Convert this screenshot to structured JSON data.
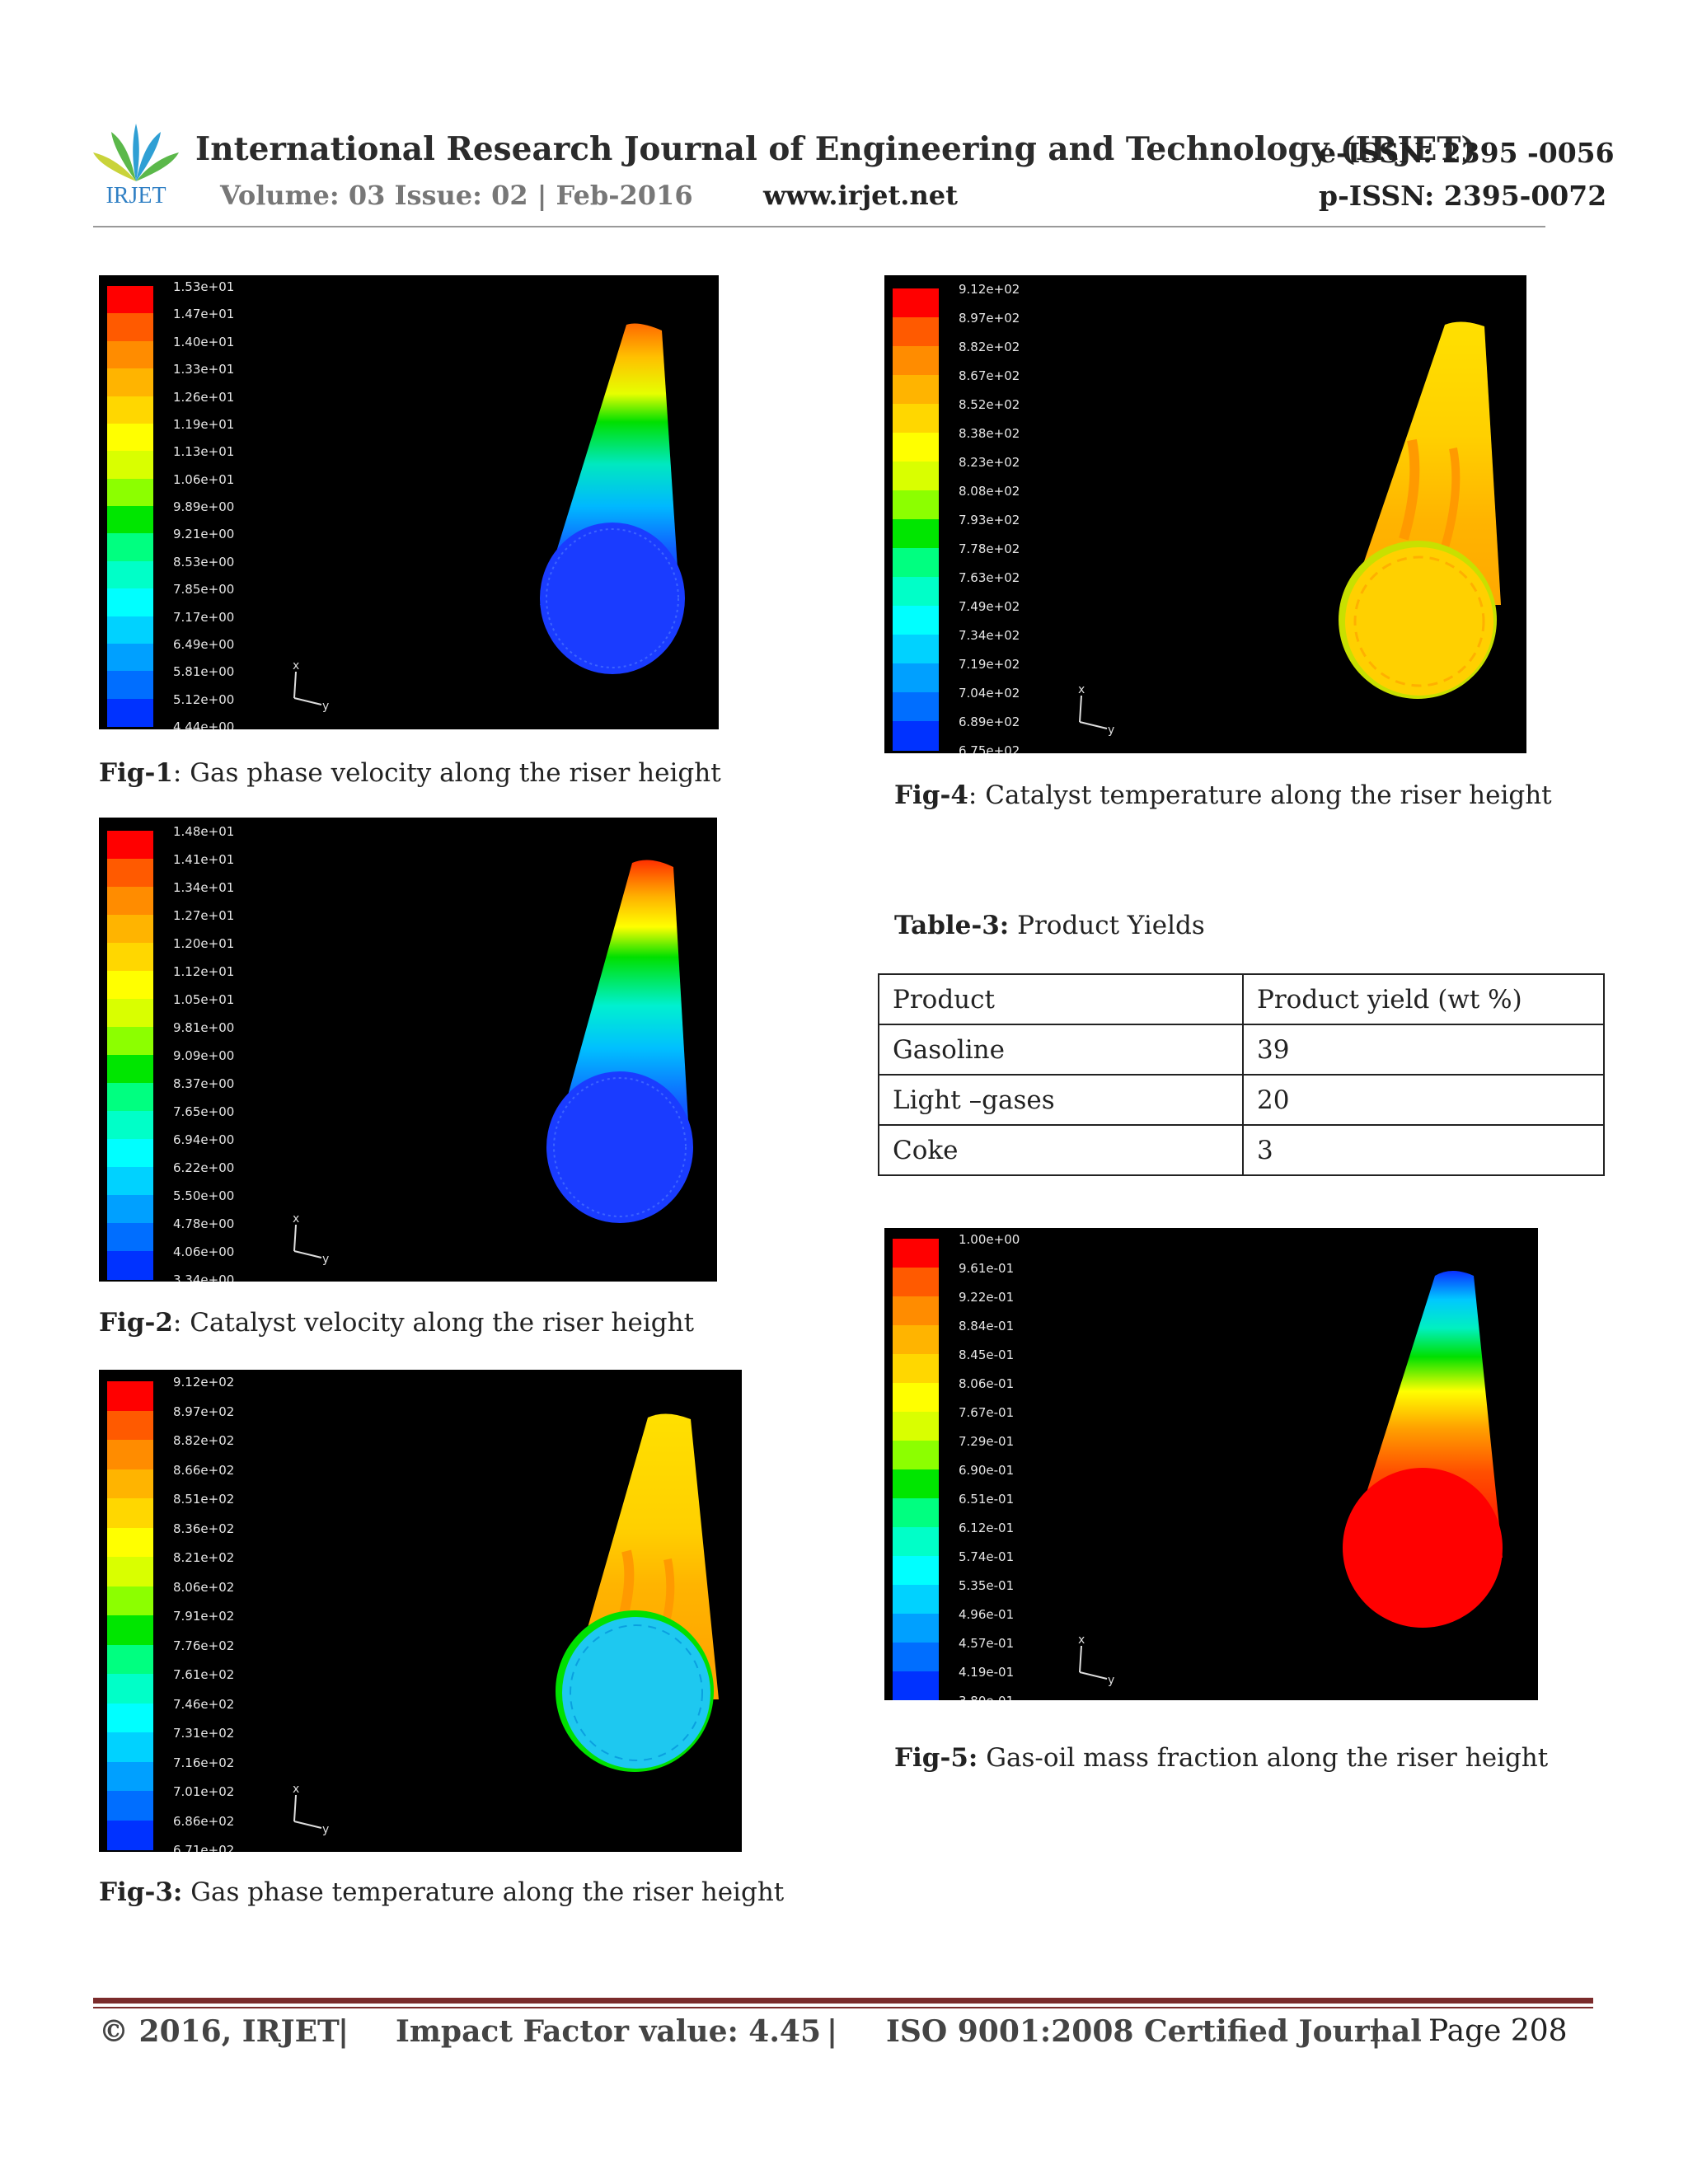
{
  "header": {
    "journal_title": "International Research Journal of Engineering and Technology (IRJET)",
    "volume_issue": "Volume: 03 Issue: 02 | Feb-2016",
    "website": "www.irjet.net",
    "e_issn": "e-ISSN: 2395 -0056",
    "p_issn": "p-ISSN: 2395-0072",
    "logo_text": "IRJET"
  },
  "figures": [
    {
      "id": "fig1",
      "caption_label": "Fig-1",
      "caption_sep": ": ",
      "caption_text": "Gas phase velocity along the riser height",
      "legend": [
        "1.53e+01",
        "1.47e+01",
        "1.40e+01",
        "1.33e+01",
        "1.26e+01",
        "1.19e+01",
        "1.13e+01",
        "1.06e+01",
        "9.89e+00",
        "9.21e+00",
        "8.53e+00",
        "7.85e+00",
        "7.17e+00",
        "6.49e+00",
        "5.81e+00",
        "5.12e+00",
        "4.44e+00"
      ]
    },
    {
      "id": "fig2",
      "caption_label": "Fig-2",
      "caption_sep": ": ",
      "caption_text": "Catalyst velocity along the riser height",
      "legend": [
        "1.48e+01",
        "1.41e+01",
        "1.34e+01",
        "1.27e+01",
        "1.20e+01",
        "1.12e+01",
        "1.05e+01",
        "9.81e+00",
        "9.09e+00",
        "8.37e+00",
        "7.65e+00",
        "6.94e+00",
        "6.22e+00",
        "5.50e+00",
        "4.78e+00",
        "4.06e+00",
        "3.34e+00"
      ]
    },
    {
      "id": "fig3",
      "caption_label": "Fig-3:",
      "caption_sep": " ",
      "caption_text": "Gas phase temperature along the riser height",
      "legend": [
        "9.12e+02",
        "8.97e+02",
        "8.82e+02",
        "8.66e+02",
        "8.51e+02",
        "8.36e+02",
        "8.21e+02",
        "8.06e+02",
        "7.91e+02",
        "7.76e+02",
        "7.61e+02",
        "7.46e+02",
        "7.31e+02",
        "7.16e+02",
        "7.01e+02",
        "6.86e+02",
        "6.71e+02"
      ]
    },
    {
      "id": "fig4",
      "caption_label": "Fig-4",
      "caption_sep": ": ",
      "caption_text": "Catalyst temperature along the riser height",
      "legend": [
        "9.12e+02",
        "8.97e+02",
        "8.82e+02",
        "8.67e+02",
        "8.52e+02",
        "8.38e+02",
        "8.23e+02",
        "8.08e+02",
        "7.93e+02",
        "7.78e+02",
        "7.63e+02",
        "7.49e+02",
        "7.34e+02",
        "7.19e+02",
        "7.04e+02",
        "6.89e+02",
        "6.75e+02"
      ]
    },
    {
      "id": "fig5",
      "caption_label": "Fig-5:",
      "caption_sep": " ",
      "caption_text": "Gas-oil mass fraction along the riser height",
      "legend": [
        "1.00e+00",
        "9.61e-01",
        "9.22e-01",
        "8.84e-01",
        "8.45e-01",
        "8.06e-01",
        "7.67e-01",
        "7.29e-01",
        "6.90e-01",
        "6.51e-01",
        "6.12e-01",
        "5.74e-01",
        "5.35e-01",
        "4.96e-01",
        "4.57e-01",
        "4.19e-01",
        "3.80e-01"
      ]
    }
  ],
  "axis_labels": {
    "x": "x",
    "y": "y"
  },
  "colormap": [
    "#ff0000",
    "#ff5a00",
    "#ff8c00",
    "#ffb400",
    "#ffd700",
    "#ffff00",
    "#d9ff00",
    "#8cff00",
    "#00e600",
    "#00ff80",
    "#00ffc8",
    "#00ffff",
    "#00d2ff",
    "#00a0ff",
    "#006eff",
    "#0032ff",
    "#0000ff"
  ],
  "table": {
    "title_label": "Table-3:",
    "title_text": "Product Yields",
    "header": [
      "Product",
      "Product yield (wt %)"
    ],
    "rows": [
      [
        "Gasoline",
        "39"
      ],
      [
        "Light –gases",
        "20"
      ],
      [
        "Coke",
        "3"
      ]
    ]
  },
  "footer": {
    "copyright": "© 2016, IRJET",
    "sep": "|",
    "impact": "Impact Factor value: 4.45",
    "iso": "ISO 9001:2008 Certified Journal",
    "page": "Page 208"
  }
}
